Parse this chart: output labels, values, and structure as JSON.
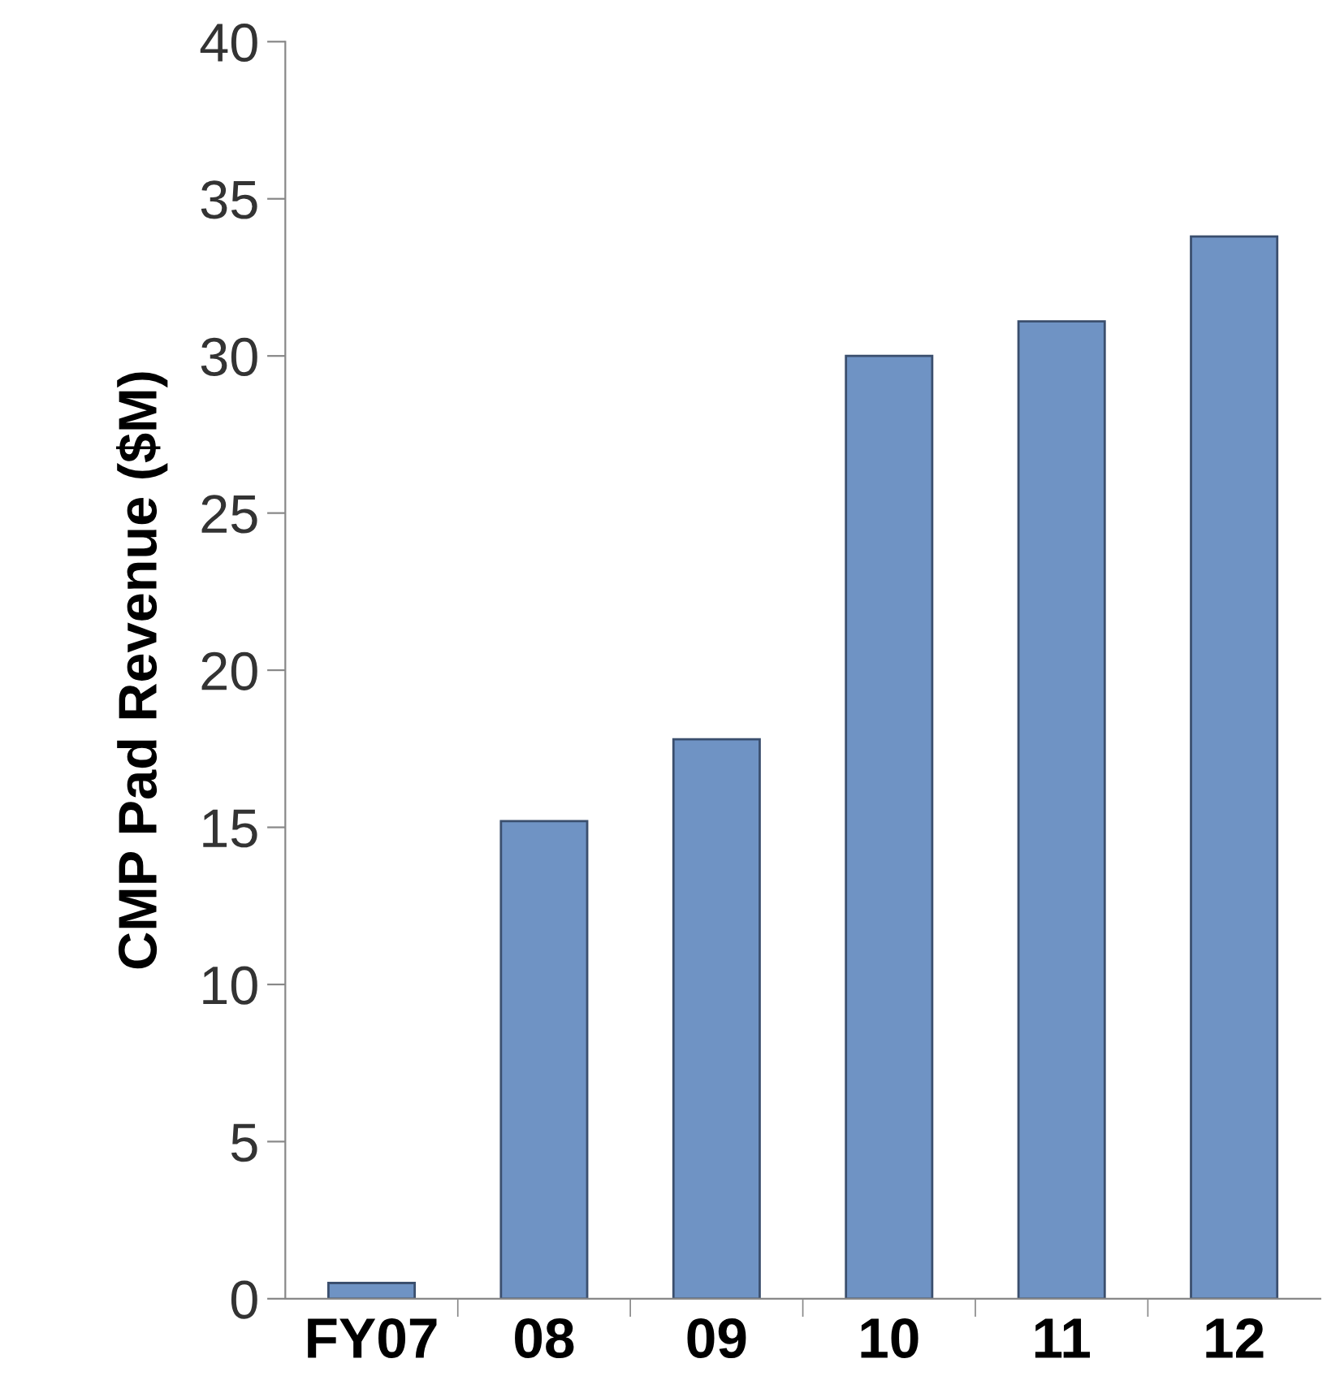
{
  "chart_data": {
    "type": "bar",
    "ylabel": "CMP Pad Revenue ($M)",
    "categories": [
      "FY07",
      "08",
      "09",
      "10",
      "11",
      "12"
    ],
    "values": [
      0.5,
      15.2,
      17.8,
      30.0,
      31.1,
      33.8
    ],
    "color": "#6f93c4",
    "ylim": [
      0,
      40
    ],
    "yticks": [
      0,
      5,
      10,
      15,
      20,
      25,
      30,
      35,
      40
    ],
    "grid": false,
    "legend": false
  }
}
